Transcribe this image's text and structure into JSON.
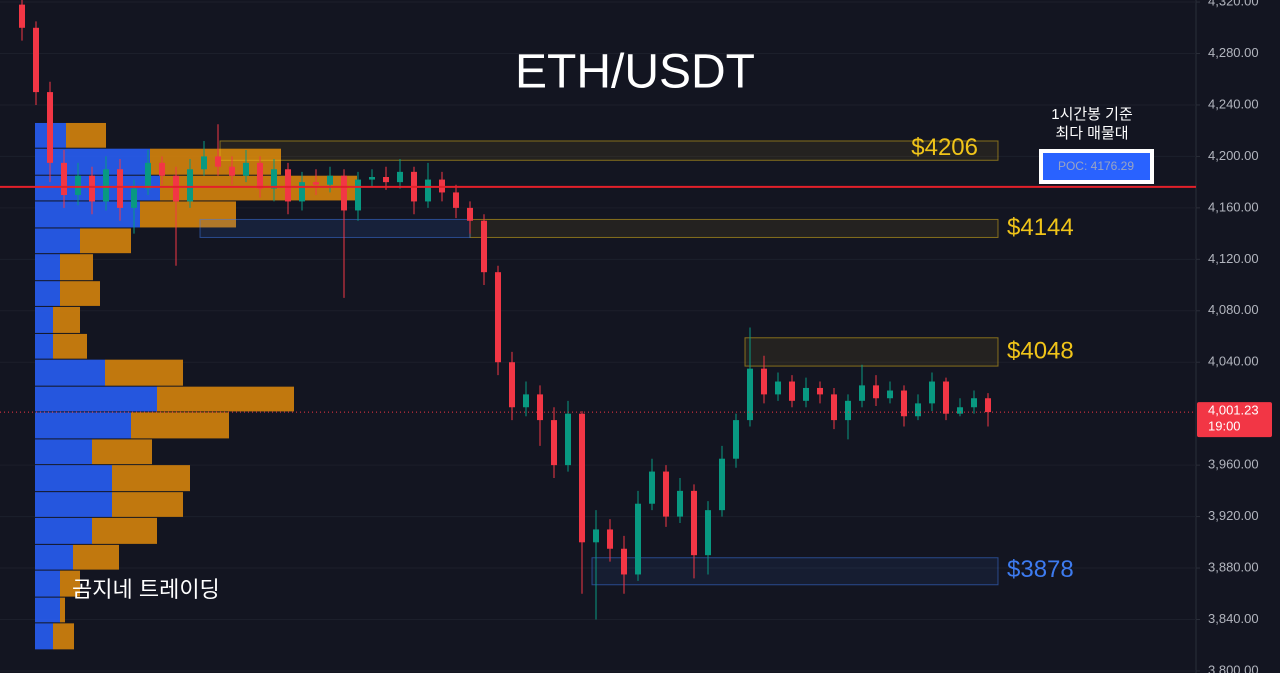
{
  "chart_data": {
    "type": "candlestick",
    "title": "ETH/USDT",
    "watermark": "곰지네 트레이딩",
    "ylim": [
      3798.4,
      4321.6
    ],
    "yticks": [
      {
        "value": 4320,
        "label": "4,320.00"
      },
      {
        "value": 4280,
        "label": "4,280.00"
      },
      {
        "value": 4240,
        "label": "4,240.00"
      },
      {
        "value": 4200,
        "label": "4,200.00"
      },
      {
        "value": 4160,
        "label": "4,160.00"
      },
      {
        "value": 4120,
        "label": "4,120.00"
      },
      {
        "value": 4080,
        "label": "4,080.00"
      },
      {
        "value": 4040,
        "label": "4,040.00"
      },
      {
        "value": 3960,
        "label": "3,960.00"
      },
      {
        "value": 3920,
        "label": "3,920.00"
      },
      {
        "value": 3880,
        "label": "3,880.00"
      },
      {
        "value": 3840,
        "label": "3,840.00"
      },
      {
        "value": 3800,
        "label": "3,800.00"
      }
    ],
    "grid": true,
    "up_color": "#089981",
    "down_color": "#f23645",
    "candles": [
      {
        "open": 4318,
        "high": 4322,
        "low": 4290,
        "close": 4300
      },
      {
        "open": 4300,
        "high": 4305,
        "low": 4240,
        "close": 4250
      },
      {
        "open": 4250,
        "high": 4258,
        "low": 4180,
        "close": 4195
      },
      {
        "open": 4195,
        "high": 4205,
        "low": 4160,
        "close": 4170
      },
      {
        "open": 4170,
        "high": 4195,
        "low": 4162,
        "close": 4185
      },
      {
        "open": 4185,
        "high": 4192,
        "low": 4155,
        "close": 4165
      },
      {
        "open": 4165,
        "high": 4200,
        "low": 4158,
        "close": 4190
      },
      {
        "open": 4190,
        "high": 4198,
        "low": 4150,
        "close": 4160
      },
      {
        "open": 4160,
        "high": 4182,
        "low": 4140,
        "close": 4175
      },
      {
        "open": 4175,
        "high": 4205,
        "low": 4170,
        "close": 4195
      },
      {
        "open": 4195,
        "high": 4200,
        "low": 4178,
        "close": 4185
      },
      {
        "open": 4185,
        "high": 4192,
        "low": 4115,
        "close": 4165
      },
      {
        "open": 4165,
        "high": 4198,
        "low": 4160,
        "close": 4190
      },
      {
        "open": 4190,
        "high": 4212,
        "low": 4185,
        "close": 4200
      },
      {
        "open": 4200,
        "high": 4225,
        "low": 4185,
        "close": 4192
      },
      {
        "open": 4192,
        "high": 4200,
        "low": 4178,
        "close": 4185
      },
      {
        "open": 4185,
        "high": 4205,
        "low": 4180,
        "close": 4195
      },
      {
        "open": 4195,
        "high": 4200,
        "low": 4168,
        "close": 4175
      },
      {
        "open": 4175,
        "high": 4198,
        "low": 4165,
        "close": 4190
      },
      {
        "open": 4190,
        "high": 4195,
        "low": 4155,
        "close": 4165
      },
      {
        "open": 4165,
        "high": 4188,
        "low": 4158,
        "close": 4180
      },
      {
        "open": 4180,
        "high": 4190,
        "low": 4170,
        "close": 4178
      },
      {
        "open": 4178,
        "high": 4192,
        "low": 4172,
        "close": 4185
      },
      {
        "open": 4185,
        "high": 4190,
        "low": 4090,
        "close": 4158
      },
      {
        "open": 4158,
        "high": 4188,
        "low": 4150,
        "close": 4182
      },
      {
        "open": 4182,
        "high": 4190,
        "low": 4176,
        "close": 4184
      },
      {
        "open": 4184,
        "high": 4192,
        "low": 4174,
        "close": 4180
      },
      {
        "open": 4180,
        "high": 4198,
        "low": 4175,
        "close": 4188
      },
      {
        "open": 4188,
        "high": 4192,
        "low": 4155,
        "close": 4165
      },
      {
        "open": 4165,
        "high": 4195,
        "low": 4160,
        "close": 4182
      },
      {
        "open": 4182,
        "high": 4188,
        "low": 4165,
        "close": 4172
      },
      {
        "open": 4172,
        "high": 4178,
        "low": 4152,
        "close": 4160
      },
      {
        "open": 4160,
        "high": 4165,
        "low": 4140,
        "close": 4150
      },
      {
        "open": 4150,
        "high": 4155,
        "low": 4100,
        "close": 4110
      },
      {
        "open": 4110,
        "high": 4115,
        "low": 4030,
        "close": 4040
      },
      {
        "open": 4040,
        "high": 4048,
        "low": 3995,
        "close": 4005
      },
      {
        "open": 4005,
        "high": 4025,
        "low": 3998,
        "close": 4015
      },
      {
        "open": 4015,
        "high": 4022,
        "low": 3975,
        "close": 3995
      },
      {
        "open": 3995,
        "high": 4005,
        "low": 3950,
        "close": 3960
      },
      {
        "open": 3960,
        "high": 4010,
        "low": 3955,
        "close": 4000
      },
      {
        "open": 4000,
        "high": 4002,
        "low": 3860,
        "close": 3900
      },
      {
        "open": 3900,
        "high": 3925,
        "low": 3840,
        "close": 3910
      },
      {
        "open": 3910,
        "high": 3918,
        "low": 3885,
        "close": 3895
      },
      {
        "open": 3895,
        "high": 3905,
        "low": 3860,
        "close": 3875
      },
      {
        "open": 3875,
        "high": 3940,
        "low": 3870,
        "close": 3930
      },
      {
        "open": 3930,
        "high": 3965,
        "low": 3925,
        "close": 3955
      },
      {
        "open": 3955,
        "high": 3960,
        "low": 3912,
        "close": 3920
      },
      {
        "open": 3920,
        "high": 3950,
        "low": 3915,
        "close": 3940
      },
      {
        "open": 3940,
        "high": 3945,
        "low": 3872,
        "close": 3890
      },
      {
        "open": 3890,
        "high": 3932,
        "low": 3875,
        "close": 3925
      },
      {
        "open": 3925,
        "high": 3975,
        "low": 3920,
        "close": 3965
      },
      {
        "open": 3965,
        "high": 4000,
        "low": 3958,
        "close": 3995
      },
      {
        "open": 3995,
        "high": 4067,
        "low": 3990,
        "close": 4035
      },
      {
        "open": 4035,
        "high": 4045,
        "low": 4008,
        "close": 4015
      },
      {
        "open": 4015,
        "high": 4032,
        "low": 4010,
        "close": 4025
      },
      {
        "open": 4025,
        "high": 4030,
        "low": 4005,
        "close": 4010
      },
      {
        "open": 4010,
        "high": 4028,
        "low": 4005,
        "close": 4020
      },
      {
        "open": 4020,
        "high": 4025,
        "low": 4008,
        "close": 4015
      },
      {
        "open": 4015,
        "high": 4020,
        "low": 3988,
        "close": 3995
      },
      {
        "open": 3995,
        "high": 4015,
        "low": 3980,
        "close": 4010
      },
      {
        "open": 4010,
        "high": 4038,
        "low": 4005,
        "close": 4022
      },
      {
        "open": 4022,
        "high": 4030,
        "low": 4006,
        "close": 4012
      },
      {
        "open": 4012,
        "high": 4025,
        "low": 4008,
        "close": 4018
      },
      {
        "open": 4018,
        "high": 4022,
        "low": 3990,
        "close": 3998
      },
      {
        "open": 3998,
        "high": 4015,
        "low": 3995,
        "close": 4008
      },
      {
        "open": 4008,
        "high": 4032,
        "low": 4002,
        "close": 4025
      },
      {
        "open": 4025,
        "high": 4028,
        "low": 3995,
        "close": 4000
      },
      {
        "open": 4000,
        "high": 4012,
        "low": 3998,
        "close": 4005
      },
      {
        "open": 4005,
        "high": 4018,
        "low": 4000,
        "close": 4012
      },
      {
        "open": 4012,
        "high": 4016,
        "low": 3990,
        "close": 4001.23
      }
    ],
    "profile": {
      "bins": [
        3816,
        3837,
        3857,
        3878,
        3898,
        3919,
        3939,
        3960,
        3980,
        4001,
        4021,
        4042,
        4062,
        4083,
        4103,
        4124,
        4144,
        4165,
        4185,
        4206,
        4226
      ],
      "buy_color": "#2962ff",
      "sell_color": "#e08a0b",
      "buy": [
        18,
        25,
        25,
        38,
        57,
        77,
        77,
        57,
        96,
        122,
        70,
        18,
        18,
        25,
        25,
        45,
        105,
        125,
        115,
        31
      ],
      "sell": [
        21,
        5,
        20,
        46,
        65,
        71,
        78,
        60,
        98,
        137,
        78,
        34,
        27,
        40,
        33,
        51,
        96,
        197,
        131,
        40
      ]
    },
    "levels": [
      {
        "value": 4206,
        "label": "$4206",
        "top": 4212,
        "bottom": 4197,
        "color": "#f0c419"
      },
      {
        "value": 4144,
        "label": "$4144",
        "top": 4151,
        "bottom": 4137,
        "color": "#f0c419"
      },
      {
        "value": 4048,
        "label": "$4048",
        "top": 4059,
        "bottom": 4037,
        "color": "#f0c419"
      },
      {
        "value": 3878,
        "label": "$3878",
        "top": 3888,
        "bottom": 3867,
        "color": "#3d7bf0"
      }
    ],
    "poc": {
      "value": 4176.29,
      "label": "POC: 4176.29",
      "note": [
        "1시간봉 기준",
        "최다 매물대"
      ],
      "color": "#e3202a"
    },
    "last_price": {
      "value": 4001.23,
      "label": "4,001.23",
      "time": "19:00",
      "color": "#f23645"
    }
  }
}
